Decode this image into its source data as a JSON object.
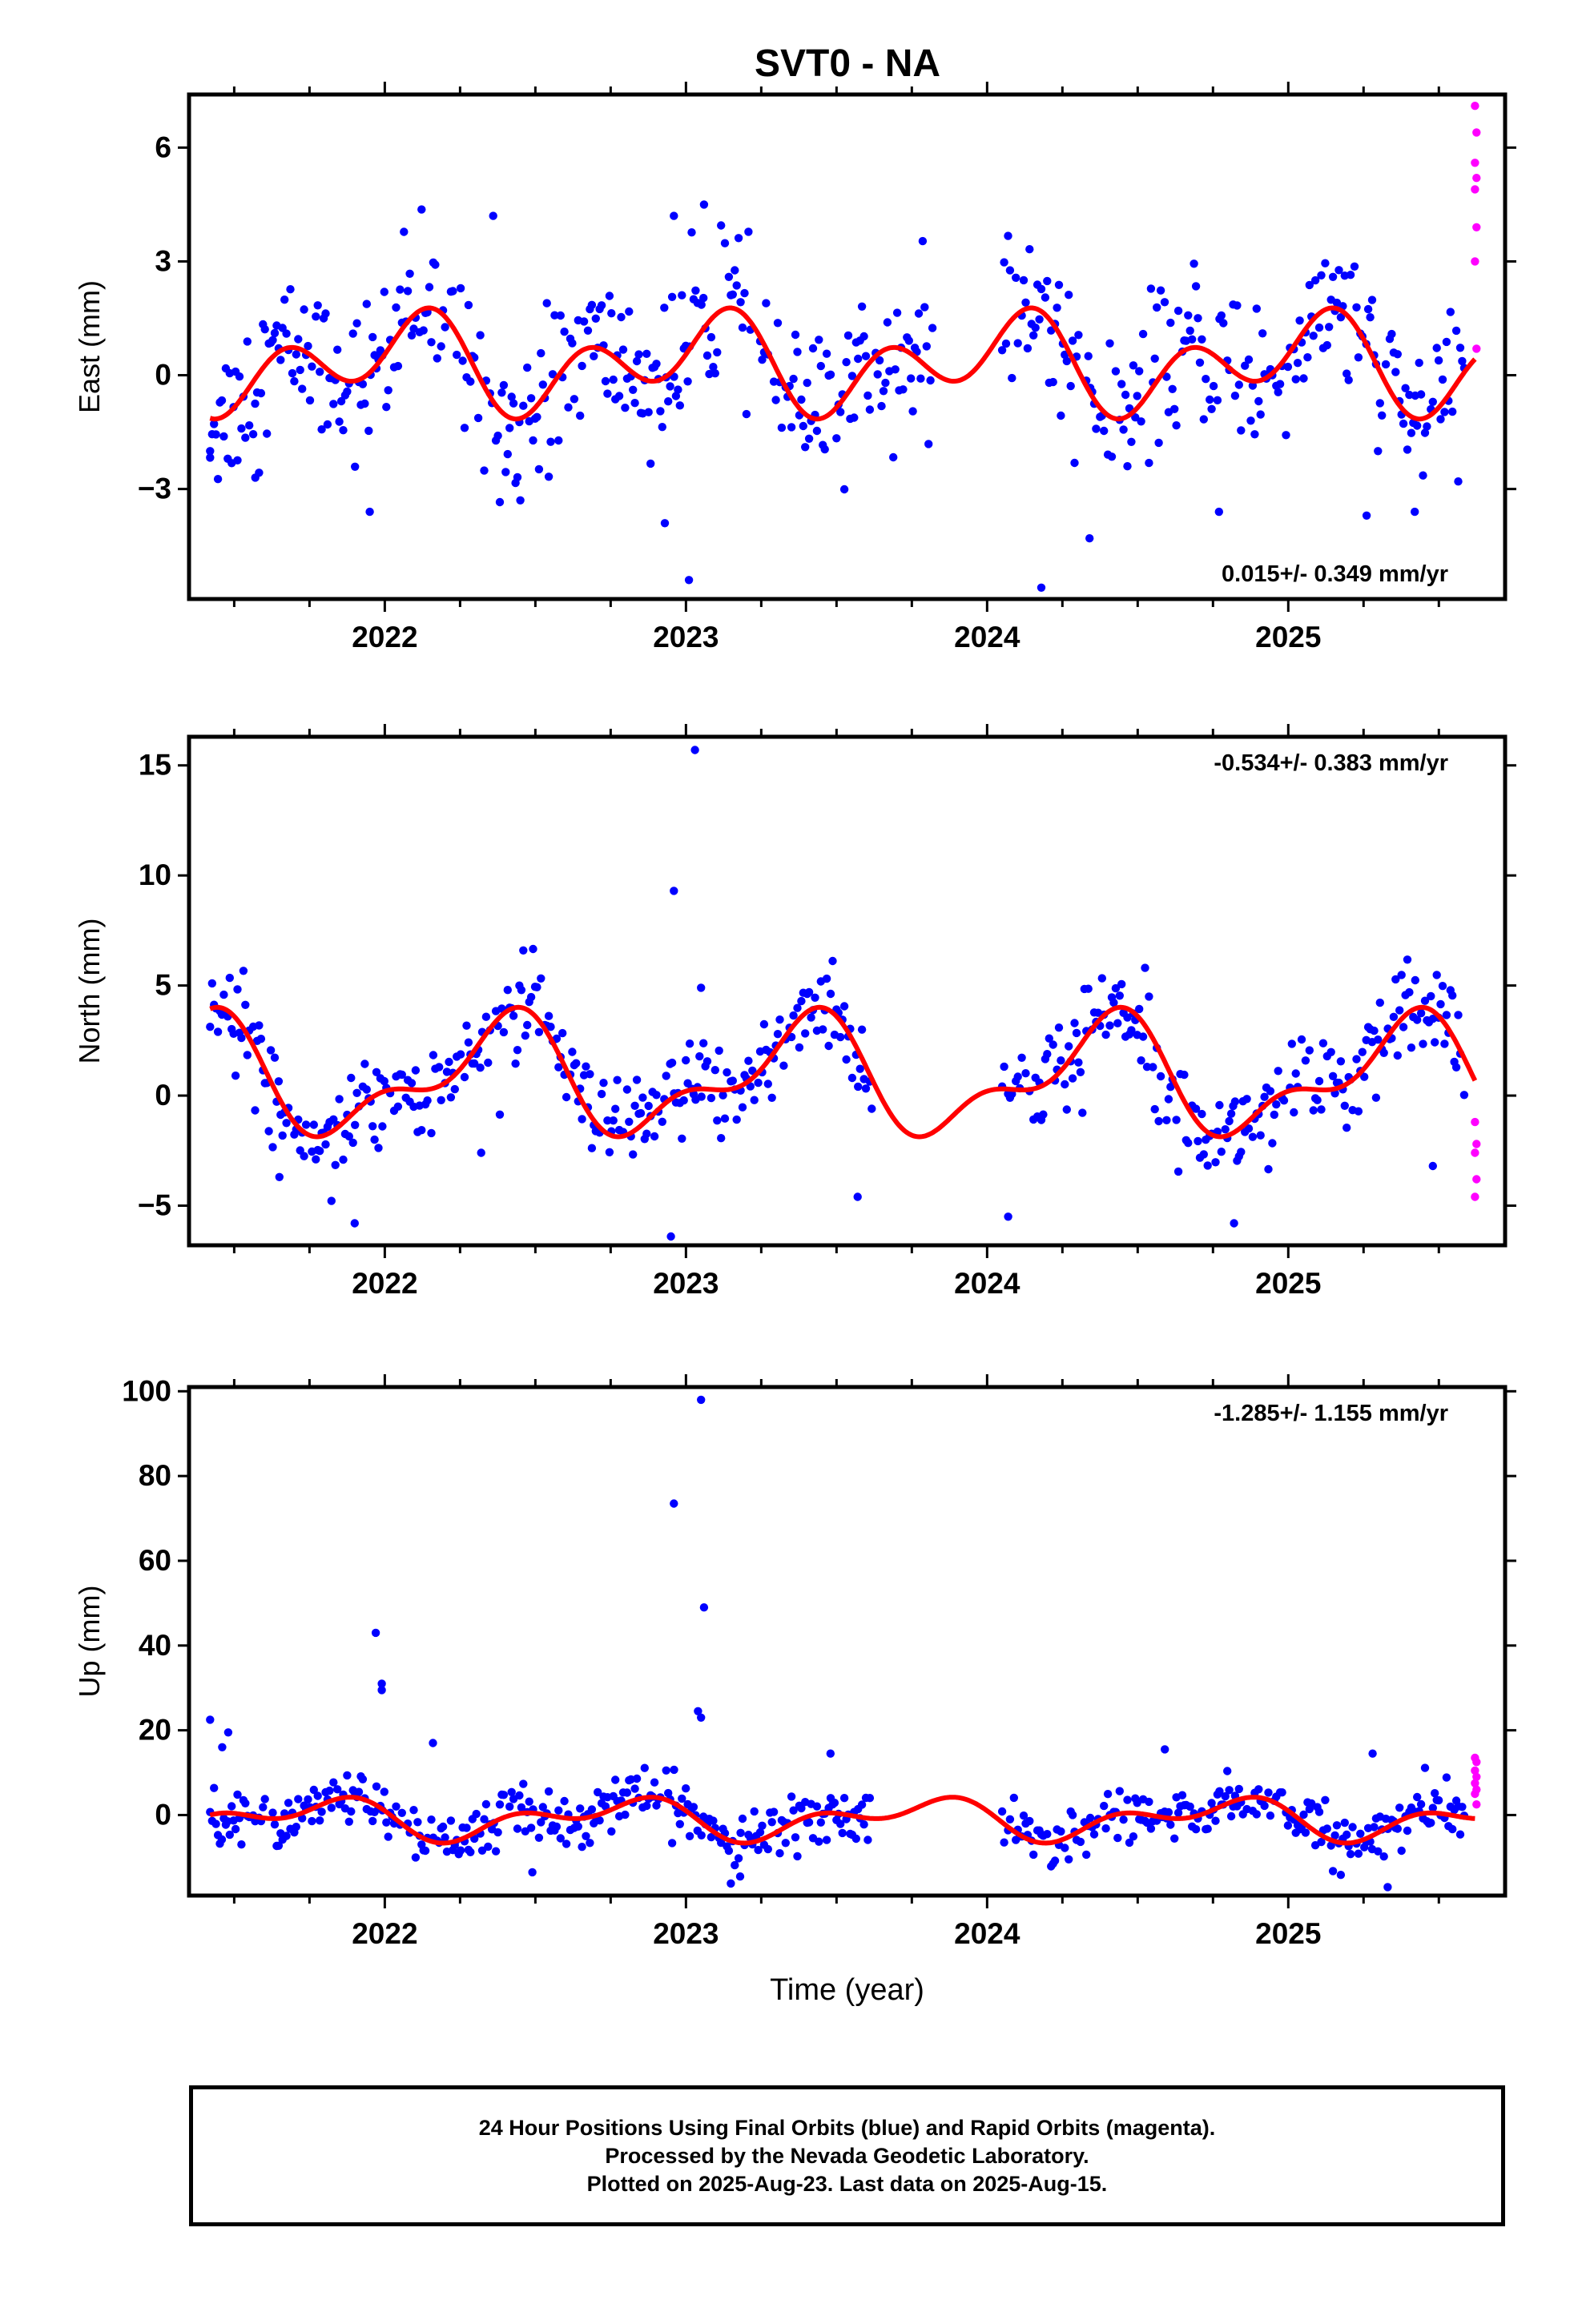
{
  "figure": {
    "title": "SVT0 - NA"
  },
  "chart_data": [
    {
      "type": "scatter",
      "panel": "east",
      "ylabel": "East (mm)",
      "xlabel": "",
      "xlim": [
        2021.35,
        2025.72
      ],
      "ylim": [
        -5.9,
        7.4
      ],
      "yticks": [
        -3,
        0,
        3,
        6
      ],
      "xticks": [
        2022,
        2023,
        2024,
        2025
      ],
      "rate_label": "0.015+/- 0.349 mm/yr",
      "rate_position": "bottom-right",
      "series": [
        {
          "name": "Final Orbits",
          "color": "#0000ff",
          "segments": [
            [
              2021.42,
              2023.82
            ],
            [
              2024.05,
              2025.59
            ]
          ],
          "sample_step": 0.0065,
          "noise": 1.0,
          "outliers": [
            {
              "x": 2021.42,
              "y": -2.0
            },
            {
              "x": 2021.57,
              "y": -2.7
            },
            {
              "x": 2021.95,
              "y": -3.6
            },
            {
              "x": 2022.36,
              "y": 4.2
            },
            {
              "x": 2022.45,
              "y": -3.3
            },
            {
              "x": 2022.96,
              "y": 4.2
            },
            {
              "x": 2023.01,
              "y": -5.4
            },
            {
              "x": 2023.06,
              "y": 4.5
            },
            {
              "x": 2022.93,
              "y": -3.9
            },
            {
              "x": 2024.18,
              "y": -5.6
            },
            {
              "x": 2024.34,
              "y": -4.3
            },
            {
              "x": 2024.77,
              "y": -3.6
            },
            {
              "x": 2025.26,
              "y": -3.7
            },
            {
              "x": 2025.42,
              "y": -3.6
            },
            {
              "x": 2025.09,
              "y": 2.5
            }
          ]
        },
        {
          "name": "Rapid Orbits",
          "color": "#ff00ff",
          "points": [
            {
              "x": 2025.62,
              "y": 7.1
            },
            {
              "x": 2025.625,
              "y": 6.4
            },
            {
              "x": 2025.62,
              "y": 5.6
            },
            {
              "x": 2025.625,
              "y": 5.2
            },
            {
              "x": 2025.62,
              "y": 4.9
            },
            {
              "x": 2025.625,
              "y": 3.9
            },
            {
              "x": 2025.62,
              "y": 3.0
            },
            {
              "x": 2025.625,
              "y": 0.7
            }
          ]
        },
        {
          "name": "Model",
          "color": "#ff0000",
          "line": true,
          "x_range": [
            2021.42,
            2025.62
          ],
          "offset": 0.3,
          "annual_cos": -0.7,
          "annual_sin": -0.2,
          "semi_cos": -0.45,
          "semi_sin": 0.8
        }
      ]
    },
    {
      "type": "scatter",
      "panel": "north",
      "ylabel": "North (mm)",
      "xlabel": "",
      "xlim": [
        2021.35,
        2025.72
      ],
      "ylim": [
        -6.8,
        16.3
      ],
      "yticks": [
        -5,
        0,
        5,
        10,
        15
      ],
      "xticks": [
        2022,
        2023,
        2024,
        2025
      ],
      "rate_label": "-0.534+/- 0.383 mm/yr",
      "rate_position": "top-right",
      "series": [
        {
          "name": "Final Orbits",
          "color": "#0000ff",
          "segments": [
            [
              2021.42,
              2023.62
            ],
            [
              2024.05,
              2025.59
            ]
          ],
          "sample_step": 0.0065,
          "noise": 1.1,
          "outliers": [
            {
              "x": 2021.9,
              "y": -5.8
            },
            {
              "x": 2022.95,
              "y": -6.4
            },
            {
              "x": 2023.03,
              "y": 15.7
            },
            {
              "x": 2022.96,
              "y": 9.3
            },
            {
              "x": 2023.05,
              "y": 4.9
            },
            {
              "x": 2023.57,
              "y": -4.6
            },
            {
              "x": 2024.07,
              "y": -5.5
            },
            {
              "x": 2024.82,
              "y": -5.8
            },
            {
              "x": 2025.48,
              "y": -3.2
            },
            {
              "x": 2022.32,
              "y": -2.6
            },
            {
              "x": 2021.65,
              "y": -3.7
            }
          ]
        },
        {
          "name": "Rapid Orbits",
          "color": "#ff00ff",
          "points": [
            {
              "x": 2025.62,
              "y": -1.2
            },
            {
              "x": 2025.625,
              "y": -2.2
            },
            {
              "x": 2025.62,
              "y": -2.6
            },
            {
              "x": 2025.625,
              "y": -3.8
            },
            {
              "x": 2025.62,
              "y": -4.6
            }
          ]
        },
        {
          "name": "Model",
          "color": "#ff0000",
          "line": true,
          "x_range": [
            2021.42,
            2025.62
          ],
          "offset": 0.8,
          "annual_cos": 1.7,
          "annual_sin": -1.5,
          "semi_cos": 1.1,
          "semi_sin": -0.4
        }
      ]
    },
    {
      "type": "scatter",
      "panel": "up",
      "ylabel": "Up (mm)",
      "xlabel": "Time (year)",
      "xlim": [
        2021.35,
        2025.72
      ],
      "ylim": [
        -19,
        101
      ],
      "yticks": [
        0,
        20,
        40,
        60,
        80,
        100
      ],
      "xticks": [
        2022,
        2023,
        2024,
        2025
      ],
      "rate_label": "-1.285+/- 1.155 mm/yr",
      "rate_position": "top-right",
      "series": [
        {
          "name": "Final Orbits",
          "color": "#0000ff",
          "segments": [
            [
              2021.42,
              2023.62
            ],
            [
              2024.05,
              2025.59
            ]
          ],
          "sample_step": 0.0065,
          "noise": 3.2,
          "outliers": [
            {
              "x": 2021.42,
              "y": 22.5
            },
            {
              "x": 2021.46,
              "y": 16.0
            },
            {
              "x": 2021.48,
              "y": 19.5
            },
            {
              "x": 2021.97,
              "y": 43.0
            },
            {
              "x": 2021.99,
              "y": 31.0
            },
            {
              "x": 2021.99,
              "y": 29.5
            },
            {
              "x": 2022.16,
              "y": 17.0
            },
            {
              "x": 2022.96,
              "y": 73.5
            },
            {
              "x": 2023.05,
              "y": 98.0
            },
            {
              "x": 2023.06,
              "y": 49.0
            },
            {
              "x": 2023.04,
              "y": 24.5
            },
            {
              "x": 2023.05,
              "y": 23.0
            },
            {
              "x": 2023.48,
              "y": 14.5
            },
            {
              "x": 2024.59,
              "y": 15.5
            },
            {
              "x": 2025.28,
              "y": 14.5
            },
            {
              "x": 2022.49,
              "y": -13.5
            },
            {
              "x": 2023.18,
              "y": -14.5
            },
            {
              "x": 2025.33,
              "y": -17.0
            }
          ]
        },
        {
          "name": "Rapid Orbits",
          "color": "#ff00ff",
          "points": [
            {
              "x": 2025.62,
              "y": 13.5
            },
            {
              "x": 2025.625,
              "y": 12.5
            },
            {
              "x": 2025.62,
              "y": 10.5
            },
            {
              "x": 2025.625,
              "y": 9.0
            },
            {
              "x": 2025.62,
              "y": 7.5
            },
            {
              "x": 2025.625,
              "y": 6.0
            },
            {
              "x": 2025.62,
              "y": 5.0
            },
            {
              "x": 2025.625,
              "y": 2.5
            }
          ]
        },
        {
          "name": "Model",
          "color": "#ff0000",
          "line": true,
          "x_range": [
            2021.42,
            2025.62
          ],
          "offset": -0.8,
          "annual_cos": -0.3,
          "annual_sin": 3.5,
          "semi_cos": 1.5,
          "semi_sin": -2.3
        }
      ]
    }
  ],
  "footer": {
    "line1": "24 Hour Positions Using Final Orbits (blue) and Rapid Orbits (magenta).",
    "line2": "Processed by the Nevada Geodetic Laboratory.",
    "line3": "Plotted on 2025-Aug-23. Last data on 2025-Aug-15."
  }
}
